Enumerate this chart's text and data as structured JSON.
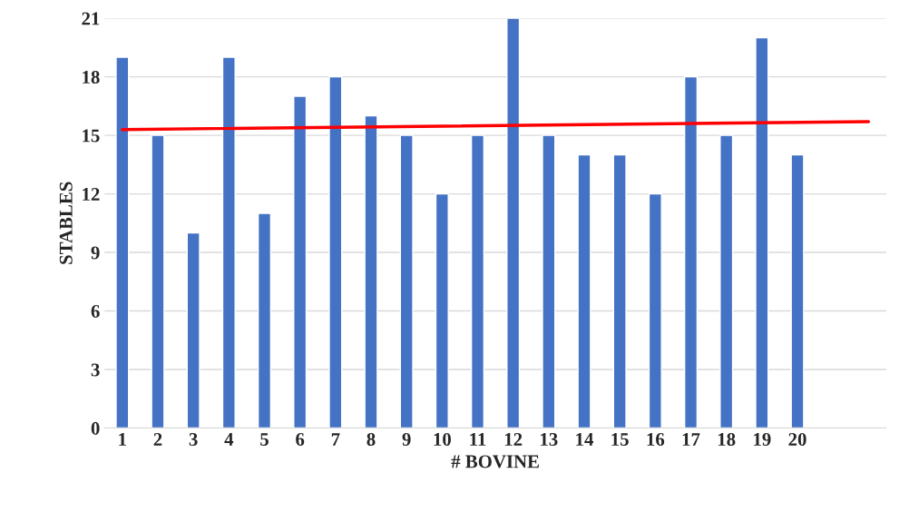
{
  "chart_data": {
    "type": "bar",
    "xlabel": "# BOVINE",
    "ylabel": "STABLES",
    "x": [
      1,
      2,
      3,
      4,
      5,
      6,
      7,
      8,
      9,
      10,
      11,
      12,
      13,
      14,
      15,
      16,
      17,
      18,
      19,
      20
    ],
    "xlim": [
      0.5,
      22.5
    ],
    "xticks": [
      1,
      2,
      3,
      4,
      5,
      6,
      7,
      8,
      9,
      10,
      11,
      12,
      13,
      14,
      15,
      16,
      17,
      18,
      19,
      20
    ],
    "ylim": [
      0,
      21
    ],
    "yticks": [
      0,
      3,
      6,
      9,
      12,
      15,
      18,
      21
    ],
    "grid": "y",
    "series": [
      {
        "color": "#4472c4",
        "values": [
          19,
          15,
          10,
          19,
          11,
          17,
          18,
          16,
          15,
          12,
          15,
          21,
          15,
          14,
          14,
          12,
          18,
          15,
          20,
          14
        ]
      },
      {
        "type": "line",
        "color": "#ff0000",
        "x": [
          1,
          22
        ],
        "values": [
          15.3,
          15.7
        ]
      }
    ]
  }
}
